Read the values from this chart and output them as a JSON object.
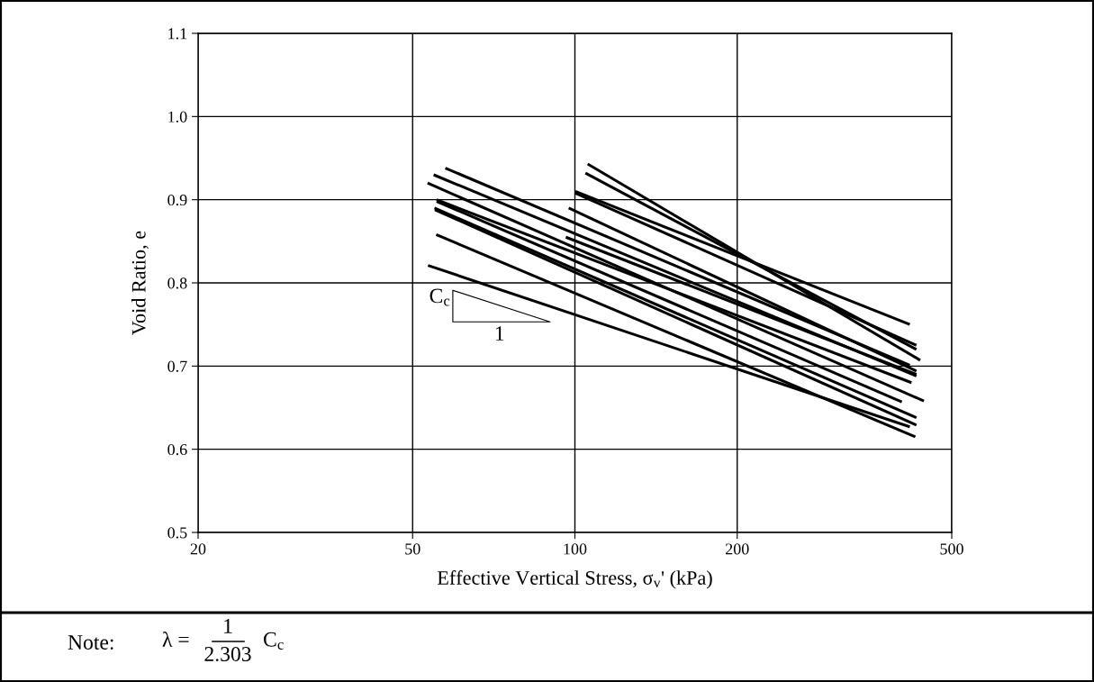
{
  "chart_data": {
    "type": "line",
    "xlabel": "Effective Vertical Stress, σ$_{v}$' (kPa)",
    "ylabel": "Void Ratio, e",
    "log": "x",
    "grid": true,
    "line_style": "solid",
    "xlim": [
      20,
      500
    ],
    "xticks": [
      20,
      50,
      100,
      200,
      500
    ],
    "ylim": [
      0.5,
      1.1
    ],
    "yticks": [
      0.5,
      0.6,
      0.7,
      0.8,
      0.9,
      {
        "value": 1.0,
        "label": "1.0"
      },
      1.1
    ],
    "annotations": [
      "C$_{c}$",
      "1",
      "Note:",
      "λ =",
      "1",
      "2.303",
      "C$_{c}$"
    ],
    "series": [
      {
        "color": "#000000",
        "x": [
          105.6,
          437
        ],
        "values": [
          0.943,
          0.707
        ]
      },
      {
        "color": "#000000",
        "x": [
          104.6,
          430
        ],
        "values": [
          0.932,
          0.72
        ]
      },
      {
        "color": "#000000",
        "x": [
          100.2,
          418
        ],
        "values": [
          0.91,
          0.75
        ]
      },
      {
        "color": "#000000",
        "x": [
          100.2,
          430
        ],
        "values": [
          0.908,
          0.725
        ]
      },
      {
        "color": "#000000",
        "x": [
          97.4,
          430
        ],
        "values": [
          0.89,
          0.694
        ]
      },
      {
        "color": "#000000",
        "x": [
          96.2,
          430
        ],
        "values": [
          0.855,
          0.69
        ]
      },
      {
        "color": "#000000",
        "x": [
          57.5,
          418
        ],
        "values": [
          0.938,
          0.701
        ]
      },
      {
        "color": "#000000",
        "x": [
          54.7,
          430
        ],
        "values": [
          0.93,
          0.688
        ]
      },
      {
        "color": "#000000",
        "x": [
          53.3,
          444
        ],
        "values": [
          0.92,
          0.658
        ]
      },
      {
        "color": "#000000",
        "x": [
          55.4,
          421
        ],
        "values": [
          0.9,
          0.68
        ]
      },
      {
        "color": "#000000",
        "x": [
          55.4,
          404
        ],
        "values": [
          0.898,
          0.657
        ]
      },
      {
        "color": "#000000",
        "x": [
          54.9,
          430
        ],
        "values": [
          0.89,
          0.638
        ]
      },
      {
        "color": "#000000",
        "x": [
          55,
          430
        ],
        "values": [
          0.888,
          0.629
        ]
      },
      {
        "color": "#000000",
        "x": [
          55.3,
          428
        ],
        "values": [
          0.858,
          0.615
        ]
      },
      {
        "color": "#000000",
        "x": [
          53.4,
          418
        ],
        "values": [
          0.821,
          0.627
        ]
      }
    ]
  }
}
